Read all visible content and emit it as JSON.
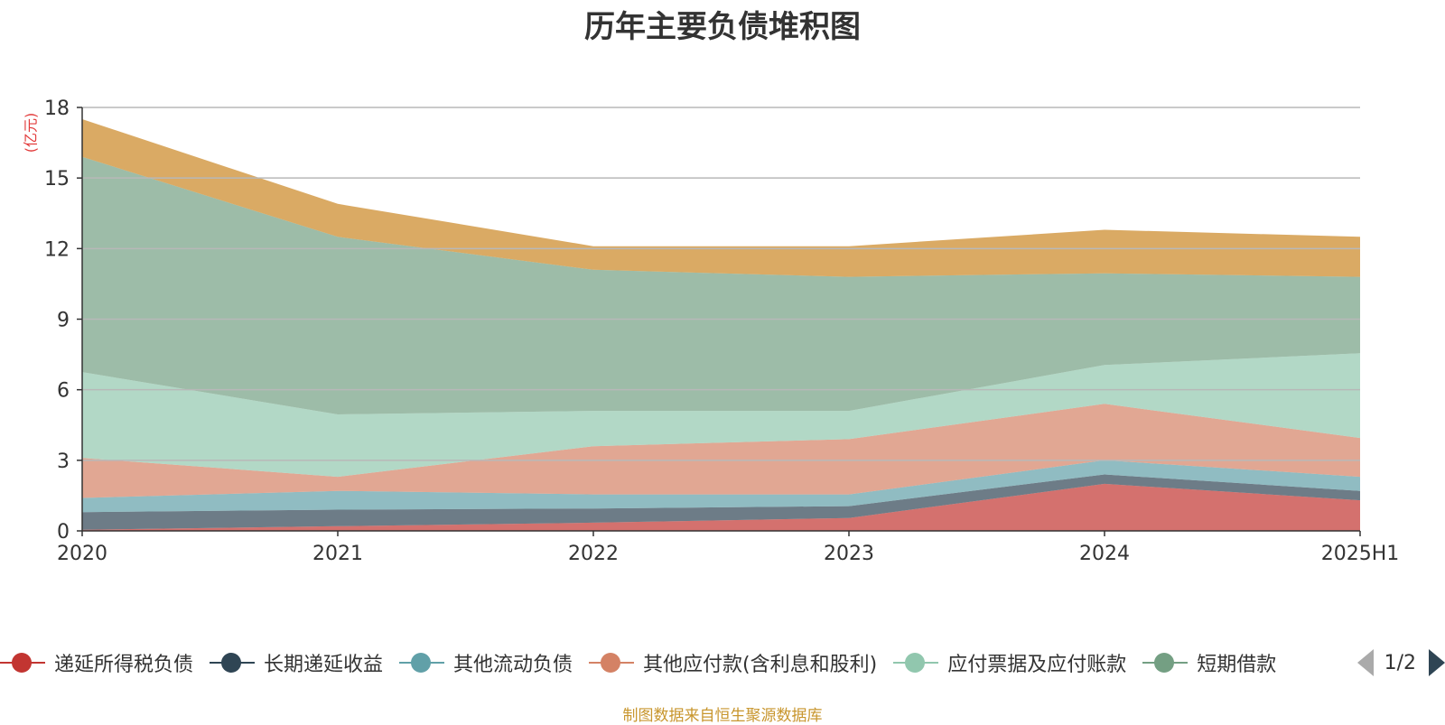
{
  "chart_data": {
    "type": "area",
    "title": "历年主要负债堆积图",
    "ylabel": "(亿元)",
    "xlabel": "",
    "categories": [
      "2020",
      "2021",
      "2022",
      "2023",
      "2024",
      "2025H1"
    ],
    "ylim": [
      0,
      18
    ],
    "yticks": [
      "0",
      "3",
      "6",
      "9",
      "12",
      "15",
      "18"
    ],
    "stacked": true,
    "grid": true,
    "legend_position": "bottom",
    "series": [
      {
        "name": "递延所得税负债",
        "color": "#c23531",
        "values": [
          0.05,
          0.2,
          0.35,
          0.55,
          2.0,
          1.3
        ]
      },
      {
        "name": "长期递延收益",
        "color": "#2f4554",
        "values": [
          0.75,
          0.7,
          0.6,
          0.5,
          0.4,
          0.4
        ]
      },
      {
        "name": "其他流动负债",
        "color": "#61a0a8",
        "values": [
          0.6,
          0.8,
          0.6,
          0.5,
          0.6,
          0.6
        ]
      },
      {
        "name": "其他应付款(含利息和股利)",
        "color": "#d48265",
        "values": [
          1.7,
          0.6,
          2.05,
          2.35,
          2.4,
          1.65
        ]
      },
      {
        "name": "应付票据及应付账款",
        "color": "#91c7ae",
        "values": [
          3.65,
          2.65,
          1.5,
          1.2,
          1.65,
          3.6
        ]
      },
      {
        "name": "短期借款",
        "color": "#749f83",
        "values": [
          9.15,
          7.55,
          6.0,
          5.7,
          3.9,
          3.25
        ]
      },
      {
        "name": "",
        "color": "#ca8622",
        "values": [
          1.6,
          1.4,
          1.0,
          1.3,
          1.85,
          1.7
        ]
      }
    ]
  },
  "legend": {
    "page_text": "1/2",
    "items": [
      "递延所得税负债",
      "长期递延收益",
      "其他流动负债",
      "其他应付款(含利息和股利)",
      "应付票据及应付账款",
      "短期借款"
    ]
  },
  "source_note": "制图数据来自恒生聚源数据库"
}
